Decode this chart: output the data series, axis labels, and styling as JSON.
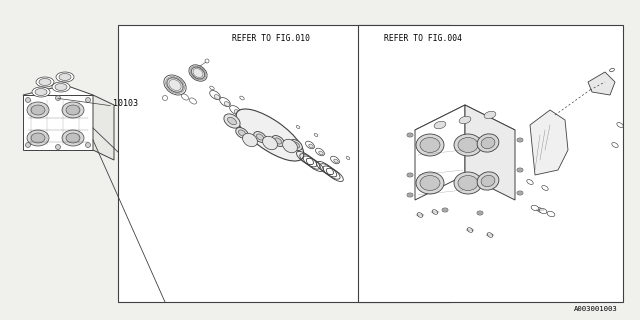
{
  "bg_color": "#f0f0ec",
  "line_color": "#404040",
  "text_color": "#000000",
  "part_number": "10103",
  "ref1": "REFER TO FIG.010",
  "ref2": "REFER TO FIG.004",
  "part_code": "A003001003",
  "white": "#ffffff",
  "light_gray": "#e8e8e4"
}
